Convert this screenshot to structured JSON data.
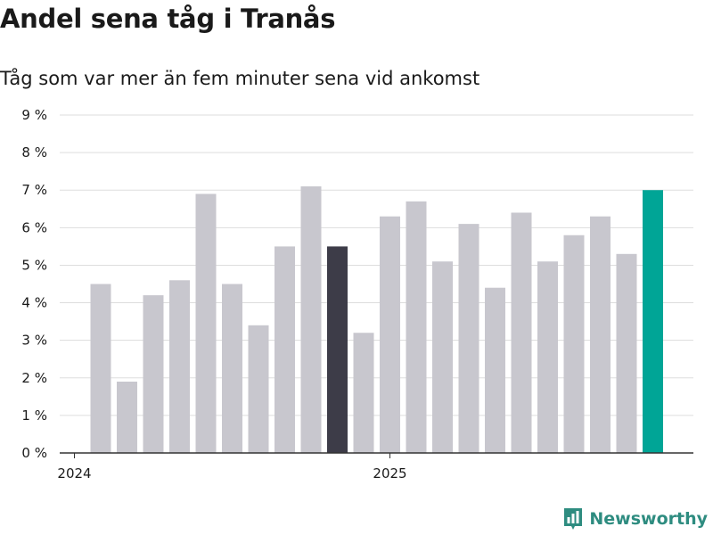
{
  "header": {
    "title": "Andel sena tåg i Tranås",
    "subtitle": "Tåg som var mer än fem minuter sena vid ankomst"
  },
  "brand": {
    "name": "Newsworthy",
    "icon": "newsworthy-logo-icon",
    "color": "#2e8c80"
  },
  "colors": {
    "default_bar": "#c8c7ce",
    "highlight_bar": "#3d3c48",
    "latest_bar": "#00a596",
    "grid": "#dddddd",
    "axis": "#333333"
  },
  "chart_data": {
    "type": "bar",
    "title": "Andel sena tåg i Tranås",
    "subtitle": "Tåg som var mer än fem minuter sena vid ankomst",
    "xlabel": "",
    "ylabel": "",
    "unit": "%",
    "ylim": [
      0,
      9
    ],
    "yticks": [
      0,
      1,
      2,
      3,
      4,
      5,
      6,
      7,
      8,
      9
    ],
    "ytick_labels": [
      "0 %",
      "1 %",
      "2 %",
      "3 %",
      "4 %",
      "5 %",
      "6 %",
      "7 %",
      "8 %",
      "9 %"
    ],
    "x_labels": [
      {
        "label": "2024",
        "month_index": 0
      },
      {
        "label": "2025",
        "month_index": 12
      }
    ],
    "grid": true,
    "values": [
      null,
      4.5,
      1.9,
      4.2,
      4.6,
      6.9,
      4.5,
      3.4,
      5.5,
      7.1,
      5.5,
      3.2,
      6.3,
      6.7,
      5.1,
      6.1,
      4.4,
      6.4,
      5.1,
      5.8,
      6.3,
      5.3,
      7.0
    ],
    "highlight_index": 10,
    "latest_index": 22
  }
}
